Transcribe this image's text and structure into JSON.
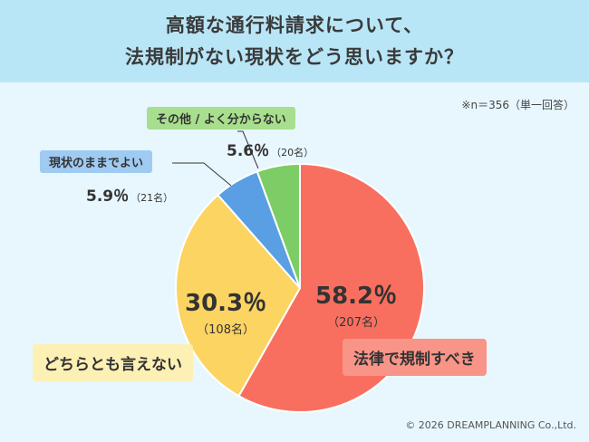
{
  "title_line1": "高額な通行料請求について、",
  "title_line2": "法規制がない現状をどう思いますか？",
  "sample_note": "※n＝356（単一回答）",
  "copyright": "© 2026 DREAMPLANNING Co.,Ltd.",
  "chart_data": {
    "type": "pie",
    "title": "高額な通行料請求について、法規制がない現状をどう思いますか？",
    "n": 356,
    "slices": [
      {
        "label": "法律で規制すべき",
        "percent": 58.2,
        "percent_text": "58.2％",
        "count": 207,
        "count_text": "（207名）",
        "color": "#f86f5f"
      },
      {
        "label": "どちらとも言えない",
        "percent": 30.3,
        "percent_text": "30.3％",
        "count": 108,
        "count_text": "（108名）",
        "color": "#fcd462"
      },
      {
        "label": "現状のままでよい",
        "percent": 5.9,
        "percent_text": "5.9％",
        "count": 21,
        "count_text": "（21名）",
        "color": "#5a9fe3"
      },
      {
        "label": "その他 / よく分からない",
        "percent": 5.6,
        "percent_text": "5.6％",
        "count": 20,
        "count_text": "（20名）",
        "color": "#7ccd65"
      }
    ]
  }
}
